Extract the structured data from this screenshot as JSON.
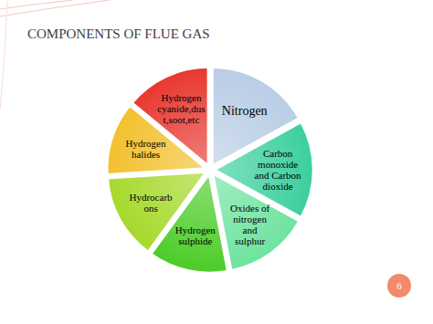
{
  "chart_data": {
    "type": "pie",
    "title": "COMPONENTS OF FLUE GAS",
    "categories": [
      "Nitrogen",
      "Carbon\nmonoxide\nand Carbon\ndioxide",
      "Oxides of\nnitrogen\nand\nsulphur",
      "Hydrogen\nsulphide",
      "Hydrocarb\nons",
      "Hydrogen\nhalides",
      "Hydrogen\ncyanide,dus\nt,soot,etc"
    ],
    "values": [
      17,
      16,
      14,
      13,
      14,
      12,
      14
    ],
    "colors": [
      "#b9cde5",
      "#3ccf9e",
      "#6fe3a0",
      "#4ccc28",
      "#a6d92a",
      "#f2c12e",
      "#e8382f"
    ]
  },
  "page_number": "6"
}
